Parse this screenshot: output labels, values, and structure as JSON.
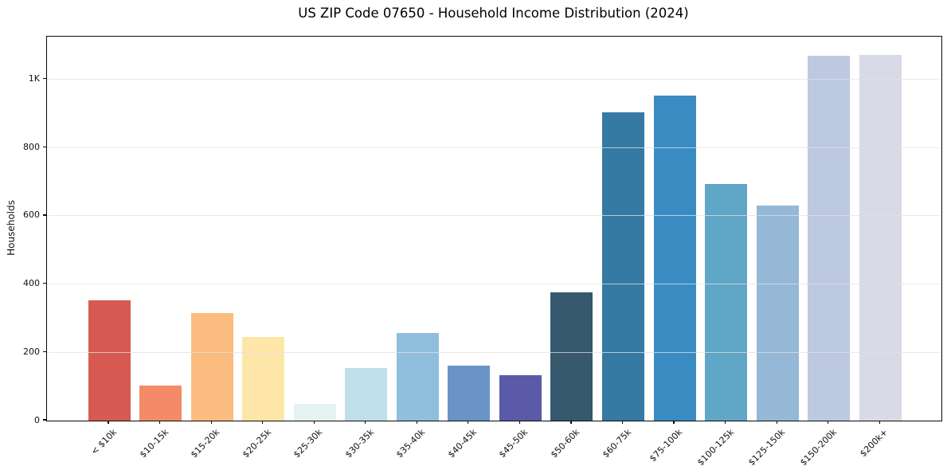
{
  "chart_data": {
    "type": "bar",
    "title": "US ZIP Code 07650 - Household Income Distribution (2024)",
    "xlabel": "",
    "ylabel": "Households",
    "categories": [
      "< $10k",
      "$10-15k",
      "$15-20k",
      "$20-25k",
      "$25-30k",
      "$30-35k",
      "$35-40k",
      "$40-45k",
      "$45-50k",
      "$50-60k",
      "$60-75k",
      "$75-100k",
      "$100-125k",
      "$125-150k",
      "$150-200k",
      "$200k+"
    ],
    "values": [
      353,
      103,
      316,
      245,
      48,
      154,
      257,
      161,
      132,
      376,
      904,
      952,
      694,
      631,
      1070,
      1072
    ],
    "bar_colors": [
      "#d65a52",
      "#f48a68",
      "#fcbc80",
      "#fde6a8",
      "#e6f2f1",
      "#bfdfe9",
      "#90bedd",
      "#6a93c8",
      "#5a5aa8",
      "#36596e",
      "#357aa3",
      "#398cc2",
      "#60a6c6",
      "#94b8d6",
      "#bcc9e0",
      "#d8dae8"
    ],
    "ylim": [
      0,
      1125
    ],
    "yticks": [
      {
        "value": 0,
        "label": "0"
      },
      {
        "value": 200,
        "label": "200"
      },
      {
        "value": 400,
        "label": "400"
      },
      {
        "value": 600,
        "label": "600"
      },
      {
        "value": 800,
        "label": "800"
      },
      {
        "value": 1000,
        "label": "1K"
      }
    ],
    "grid": "horizontal-light",
    "legend": "none",
    "x_tick_label_rotation_deg": 45,
    "spine_color": "#0a0a0a",
    "gridline_color": "#e1e1e1",
    "background_color": "#ffffff"
  }
}
